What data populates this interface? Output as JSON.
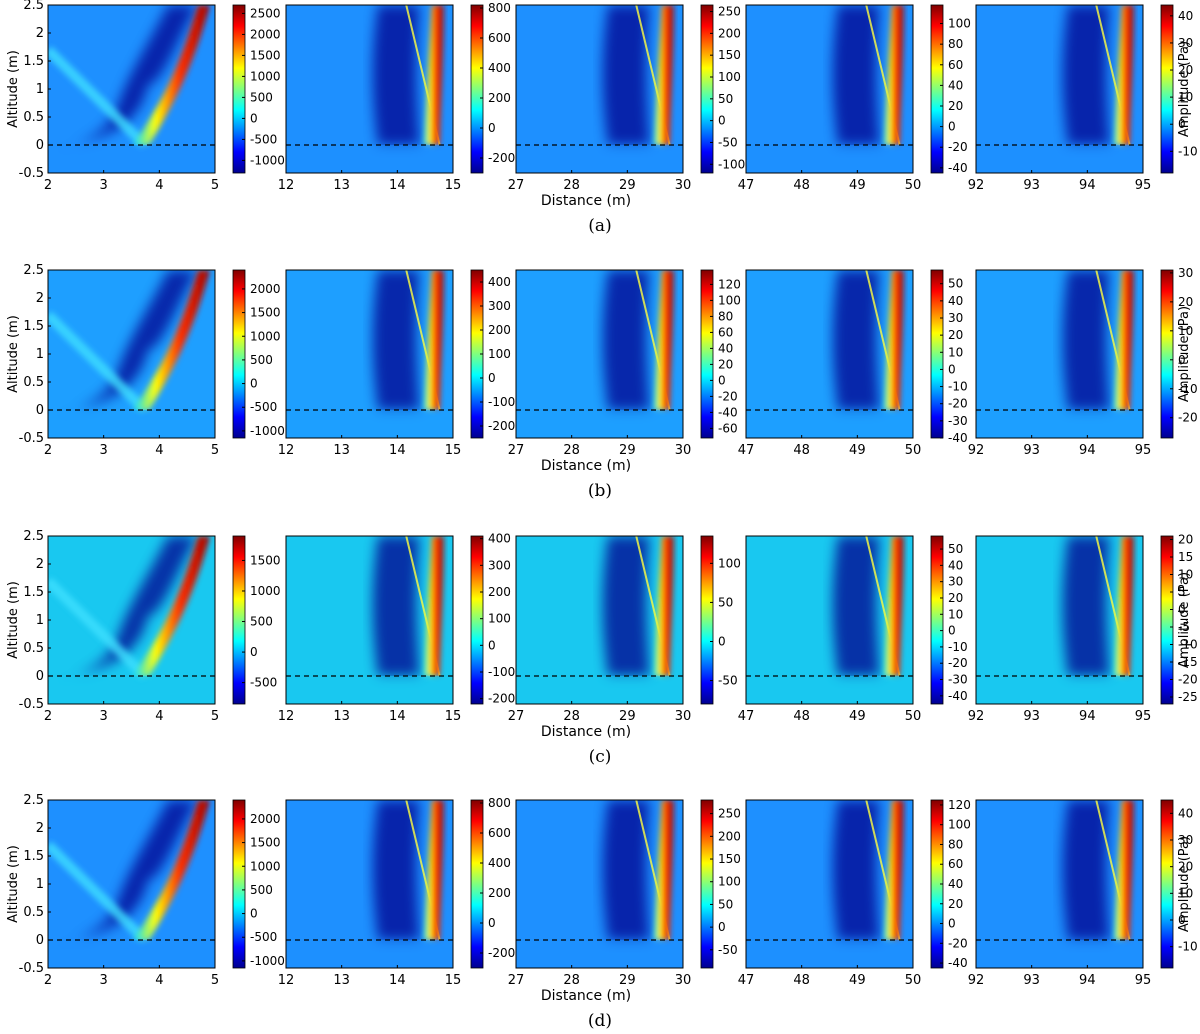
{
  "figure": {
    "distance_label": "Distance (m)",
    "altitude_label": "Altitude (m)",
    "amplitude_label": "Amplitude (Pa)",
    "ground_line_altitude": 0
  },
  "chart_data": [
    {
      "type": "heatmap",
      "caption": "(a)",
      "ylabel": "Altitude (m)",
      "xlabel": "Distance (m)",
      "colorbar_label": "Amplitude (Pa)",
      "ylim": [
        -0.5,
        2.5
      ],
      "yticks": [
        "2.5",
        "2",
        "1.5",
        "1",
        "0.5",
        "0",
        "-0.5"
      ],
      "background": "#1e90ff",
      "panels": [
        {
          "xlim": [
            2,
            5
          ],
          "xticks": [
            "2",
            "3",
            "4",
            "5"
          ],
          "cticks": [
            "2500",
            "2000",
            "1500",
            "1000",
            "500",
            "0",
            "-500",
            "-1000"
          ],
          "cmin": -1300,
          "cmax": 2700
        },
        {
          "xlim": [
            12,
            15
          ],
          "xticks": [
            "12",
            "13",
            "14",
            "15"
          ],
          "cticks": [
            "800",
            "600",
            "400",
            "200",
            "0",
            "-200"
          ],
          "cmin": -300,
          "cmax": 820
        },
        {
          "xlim": [
            27,
            30
          ],
          "xticks": [
            "27",
            "28",
            "29",
            "30"
          ],
          "cticks": [
            "250",
            "200",
            "150",
            "100",
            "50",
            "0",
            "-50",
            "-100"
          ],
          "cmin": -120,
          "cmax": 265
        },
        {
          "xlim": [
            47,
            50
          ],
          "xticks": [
            "47",
            "48",
            "49",
            "50"
          ],
          "cticks": [
            "100",
            "80",
            "60",
            "40",
            "20",
            "0",
            "-20",
            "-40"
          ],
          "cmin": -45,
          "cmax": 118
        },
        {
          "xlim": [
            92,
            95
          ],
          "xticks": [
            "92",
            "93",
            "94",
            "95"
          ],
          "cticks": [
            "40",
            "30",
            "20",
            "10",
            "0",
            "-10"
          ],
          "cmin": -18,
          "cmax": 44
        }
      ]
    },
    {
      "type": "heatmap",
      "caption": "(b)",
      "ylabel": "Altitude (m)",
      "xlabel": "Distance (m)",
      "colorbar_label": "Amplitude (Pa)",
      "ylim": [
        -0.5,
        2.5
      ],
      "yticks": [
        "2.5",
        "2",
        "1.5",
        "1",
        "0.5",
        "0",
        "-0.5"
      ],
      "background": "#1e9fff",
      "panels": [
        {
          "xlim": [
            2,
            5
          ],
          "xticks": [
            "2",
            "3",
            "4",
            "5"
          ],
          "cticks": [
            "2000",
            "1500",
            "1000",
            "500",
            "0",
            "-500",
            "-1000"
          ],
          "cmin": -1150,
          "cmax": 2400
        },
        {
          "xlim": [
            12,
            15
          ],
          "xticks": [
            "12",
            "13",
            "14",
            "15"
          ],
          "cticks": [
            "400",
            "300",
            "200",
            "100",
            "0",
            "-100",
            "-200"
          ],
          "cmin": -250,
          "cmax": 450
        },
        {
          "xlim": [
            27,
            30
          ],
          "xticks": [
            "27",
            "28",
            "29",
            "30"
          ],
          "cticks": [
            "120",
            "100",
            "80",
            "60",
            "40",
            "20",
            "0",
            "-20",
            "-40",
            "-60"
          ],
          "cmin": -72,
          "cmax": 138
        },
        {
          "xlim": [
            47,
            50
          ],
          "xticks": [
            "47",
            "48",
            "49",
            "50"
          ],
          "cticks": [
            "50",
            "40",
            "30",
            "20",
            "10",
            "0",
            "-10",
            "-20",
            "-30",
            "-40"
          ],
          "cmin": -40,
          "cmax": 58
        },
        {
          "xlim": [
            92,
            95
          ],
          "xticks": [
            "92",
            "93",
            "94",
            "95"
          ],
          "cticks": [
            "30",
            "20",
            "10",
            "0",
            "-10",
            "-20"
          ],
          "cmin": -27,
          "cmax": 31
        }
      ]
    },
    {
      "type": "heatmap",
      "caption": "(c)",
      "ylabel": "Altitude (m)",
      "xlabel": "Distance (m)",
      "colorbar_label": "Amplitude (Pa)",
      "ylim": [
        -0.5,
        2.5
      ],
      "yticks": [
        "2.5",
        "2",
        "1.5",
        "1",
        "0.5",
        "0",
        "-0.5"
      ],
      "background": "#19c8f0",
      "panels": [
        {
          "xlim": [
            2,
            5
          ],
          "xticks": [
            "2",
            "3",
            "4",
            "5"
          ],
          "cticks": [
            "1500",
            "1000",
            "500",
            "0",
            "-500"
          ],
          "cmin": -850,
          "cmax": 1900
        },
        {
          "xlim": [
            12,
            15
          ],
          "xticks": [
            "12",
            "13",
            "14",
            "15"
          ],
          "cticks": [
            "400",
            "300",
            "200",
            "100",
            "0",
            "-100",
            "-200"
          ],
          "cmin": -220,
          "cmax": 410
        },
        {
          "xlim": [
            27,
            30
          ],
          "xticks": [
            "27",
            "28",
            "29",
            "30"
          ],
          "cticks": [
            "100",
            "50",
            "0",
            "-50"
          ],
          "cmin": -80,
          "cmax": 135
        },
        {
          "xlim": [
            47,
            50
          ],
          "xticks": [
            "47",
            "48",
            "49",
            "50"
          ],
          "cticks": [
            "50",
            "40",
            "30",
            "20",
            "10",
            "0",
            "-10",
            "-20",
            "-30",
            "-40"
          ],
          "cmin": -45,
          "cmax": 58
        },
        {
          "xlim": [
            92,
            95
          ],
          "xticks": [
            "92",
            "93",
            "94",
            "95"
          ],
          "cticks": [
            "20",
            "15",
            "10",
            "5",
            "0",
            "-5",
            "-10",
            "-15",
            "-20",
            "-25"
          ],
          "cmin": -27,
          "cmax": 21
        }
      ]
    },
    {
      "type": "heatmap",
      "caption": "(d)",
      "ylabel": "Altitude (m)",
      "xlabel": "Distance (m)",
      "colorbar_label": "Amplitude (Pa)",
      "ylim": [
        -0.5,
        2.5
      ],
      "yticks": [
        "2.5",
        "2",
        "1.5",
        "1",
        "0.5",
        "0",
        "-0.5"
      ],
      "background": "#1e90ff",
      "panels": [
        {
          "xlim": [
            2,
            5
          ],
          "xticks": [
            "2",
            "3",
            "4",
            "5"
          ],
          "cticks": [
            "2000",
            "1500",
            "1000",
            "500",
            "0",
            "-500",
            "-1000"
          ],
          "cmin": -1150,
          "cmax": 2400
        },
        {
          "xlim": [
            12,
            15
          ],
          "xticks": [
            "12",
            "13",
            "14",
            "15"
          ],
          "cticks": [
            "800",
            "600",
            "400",
            "200",
            "0",
            "-200"
          ],
          "cmin": -300,
          "cmax": 820
        },
        {
          "xlim": [
            27,
            30
          ],
          "xticks": [
            "27",
            "28",
            "29",
            "30"
          ],
          "cticks": [
            "250",
            "200",
            "150",
            "100",
            "50",
            "0",
            "-50"
          ],
          "cmin": -90,
          "cmax": 280
        },
        {
          "xlim": [
            47,
            50
          ],
          "xticks": [
            "47",
            "48",
            "49",
            "50"
          ],
          "cticks": [
            "120",
            "100",
            "80",
            "60",
            "40",
            "20",
            "0",
            "-20",
            "-40"
          ],
          "cmin": -45,
          "cmax": 125
        },
        {
          "xlim": [
            92,
            95
          ],
          "xticks": [
            "92",
            "93",
            "94",
            "95"
          ],
          "cticks": [
            "40",
            "30",
            "20",
            "10",
            "0",
            "-10"
          ],
          "cmin": -18,
          "cmax": 45
        }
      ]
    }
  ]
}
